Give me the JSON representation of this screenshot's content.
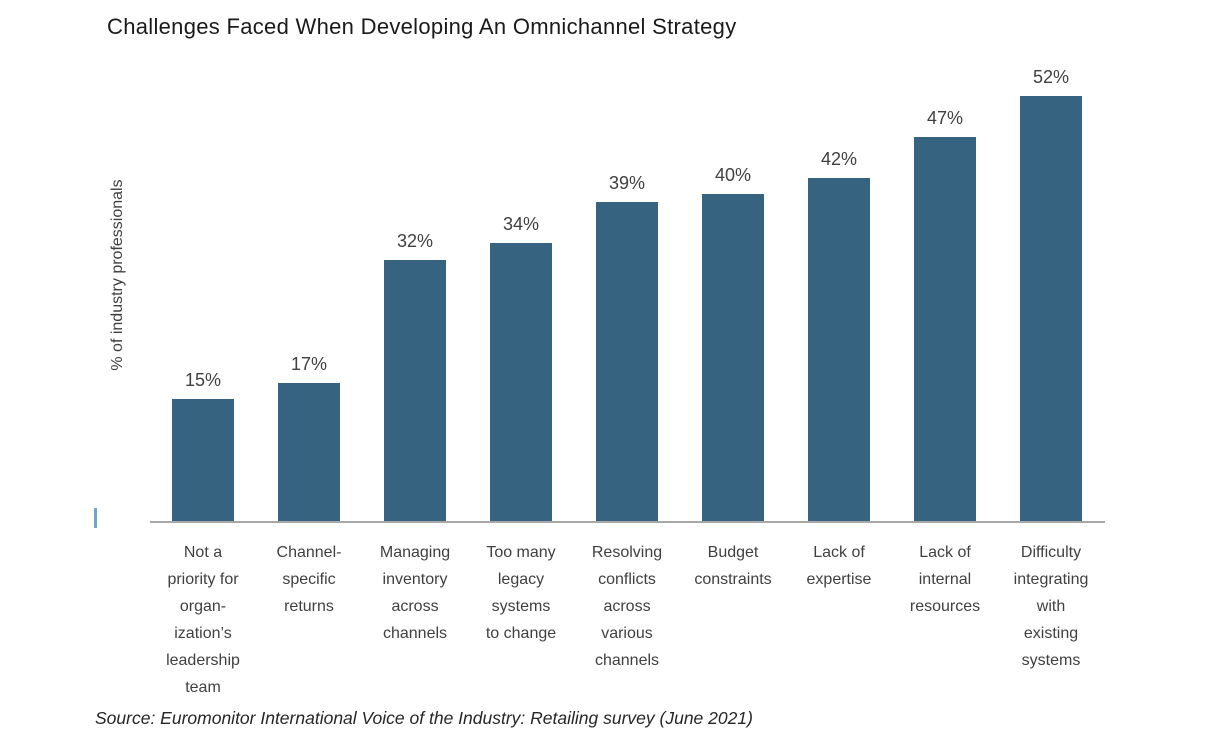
{
  "title": "Challenges Faced When Developing An Omnichannel Strategy",
  "source": "Source: Euromonitor International Voice of the Industry: Retailing survey (June 2021)",
  "chart_data": {
    "type": "bar",
    "title": "Challenges Faced When Developing An Omnichannel Strategy",
    "xlabel": "",
    "ylabel": "% of industry professionals",
    "unit": "%",
    "ylim": [
      0,
      55
    ],
    "grid": false,
    "legend": false,
    "bar_color": "#36637f",
    "axis_line_color": "#a8a8a8",
    "label_color": "#404040",
    "categories": [
      "Not a priority for organization’s leadership team",
      "Channel-specific returns",
      "Managing inventory across channels",
      "Too many legacy systems to change",
      "Resolving conflicts across various channels",
      "Budget constraints",
      "Lack of expertise",
      "Lack of internal resources",
      "Difficulty integrating with existing systems"
    ],
    "label_lines": [
      [
        "Not a",
        "priority for",
        "organ-",
        "ization’s",
        "leadership",
        "team"
      ],
      [
        "Channel-",
        "specific",
        "returns"
      ],
      [
        "Managing",
        "inventory",
        "across",
        "channels"
      ],
      [
        "Too many",
        "legacy",
        "systems",
        "to change"
      ],
      [
        "Resolving",
        "conflicts",
        "across",
        "various",
        "channels"
      ],
      [
        "Budget",
        "constraints"
      ],
      [
        "Lack of",
        "expertise"
      ],
      [
        "Lack of",
        "internal",
        "resources"
      ],
      [
        "Difficulty",
        "integrating",
        "with",
        "existing",
        "systems"
      ]
    ],
    "values": [
      15,
      17,
      32,
      34,
      39,
      40,
      42,
      47,
      52
    ],
    "value_labels": [
      "15%",
      "17%",
      "32%",
      "34%",
      "39%",
      "40%",
      "42%",
      "47%",
      "52%"
    ]
  },
  "decorations": {
    "y_axis_tick_color": "#71a3cc"
  }
}
